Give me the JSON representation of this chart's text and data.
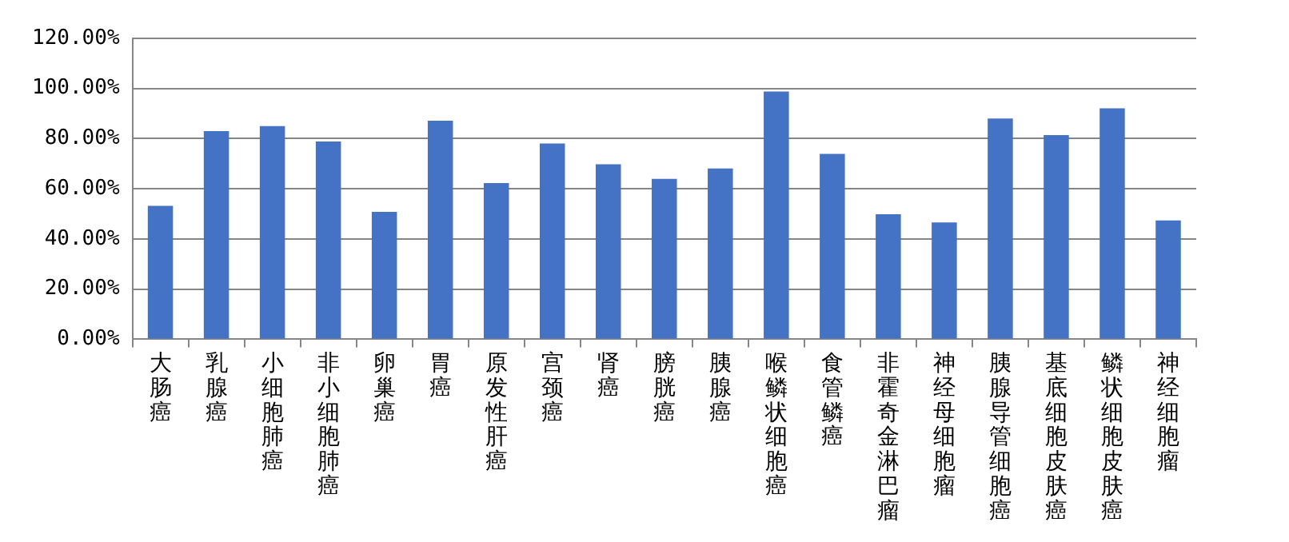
{
  "chart_data": {
    "type": "bar",
    "categories": [
      "大肠癌",
      "乳腺癌",
      "小细胞肺癌",
      "非小细胞肺癌",
      "卵巢癌",
      "胃癌",
      "原发性肝癌",
      "宫颈癌",
      "肾癌",
      "膀胱癌",
      "胰腺癌",
      "喉鳞状细胞癌",
      "食管鳞癌",
      "非霍奇金淋巴瘤",
      "神经母细胞瘤",
      "胰腺导管细胞癌",
      "基底细胞皮肤癌",
      "鳞状细胞皮肤癌",
      "神经细胞瘤"
    ],
    "values": [
      53.2,
      83,
      85,
      78.9,
      50.8,
      87.2,
      62.3,
      78.1,
      69.8,
      64,
      68.1,
      98.8,
      73.9,
      49.9,
      46.6,
      88,
      81.4,
      92.1,
      47.4
    ],
    "color": "#4472c4",
    "ylim": [
      0,
      120
    ],
    "yticks": [
      {
        "value": 0,
        "label": "0.00%"
      },
      {
        "value": 20,
        "label": "20.00%"
      },
      {
        "value": 40,
        "label": "40.00%"
      },
      {
        "value": 60,
        "label": "60.00%"
      },
      {
        "value": 80,
        "label": "80.00%"
      },
      {
        "value": 100,
        "label": "100.00%"
      },
      {
        "value": 120,
        "label": "120.00%"
      }
    ],
    "grid": "y",
    "legend": false
  }
}
